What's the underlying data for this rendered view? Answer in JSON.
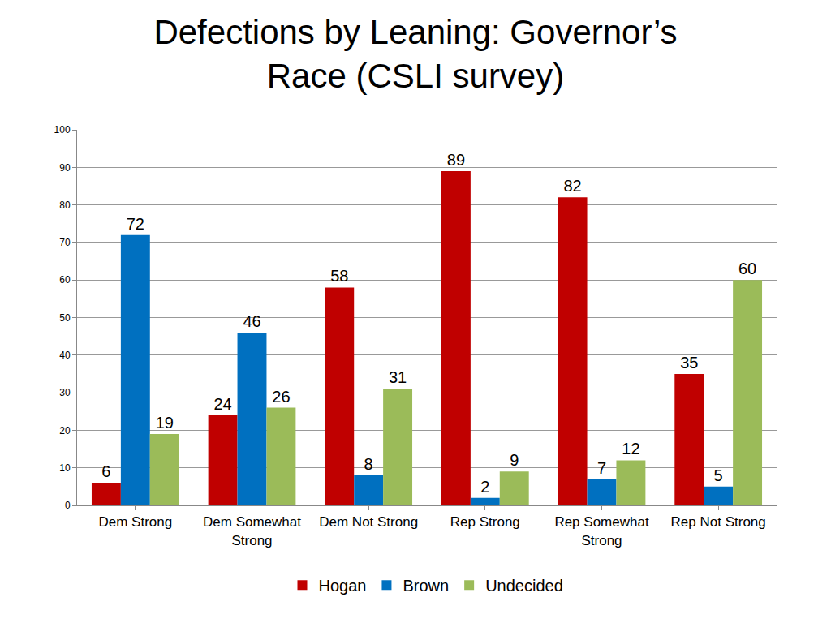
{
  "chart_data": {
    "type": "bar",
    "title": "Defections by Leaning: Governor’s Race (CSLI survey)",
    "categories": [
      "Dem Strong",
      "Dem Somewhat Strong",
      "Dem Not Strong",
      "Rep Strong",
      "Rep Somewhat Strong",
      "Rep Not Strong"
    ],
    "series": [
      {
        "name": "Hogan",
        "color": "#c00000",
        "values": [
          6,
          24,
          58,
          89,
          82,
          35
        ]
      },
      {
        "name": "Brown",
        "color": "#0070c0",
        "values": [
          72,
          46,
          8,
          2,
          7,
          5
        ]
      },
      {
        "name": "Undecided",
        "color": "#9bbb59",
        "values": [
          19,
          26,
          31,
          9,
          12,
          60
        ]
      }
    ],
    "ylim": [
      0,
      100
    ],
    "yticks": [
      0,
      10,
      20,
      30,
      40,
      50,
      60,
      70,
      80,
      90,
      100
    ],
    "grid": true,
    "legend": "bottom",
    "data_labels": true
  }
}
